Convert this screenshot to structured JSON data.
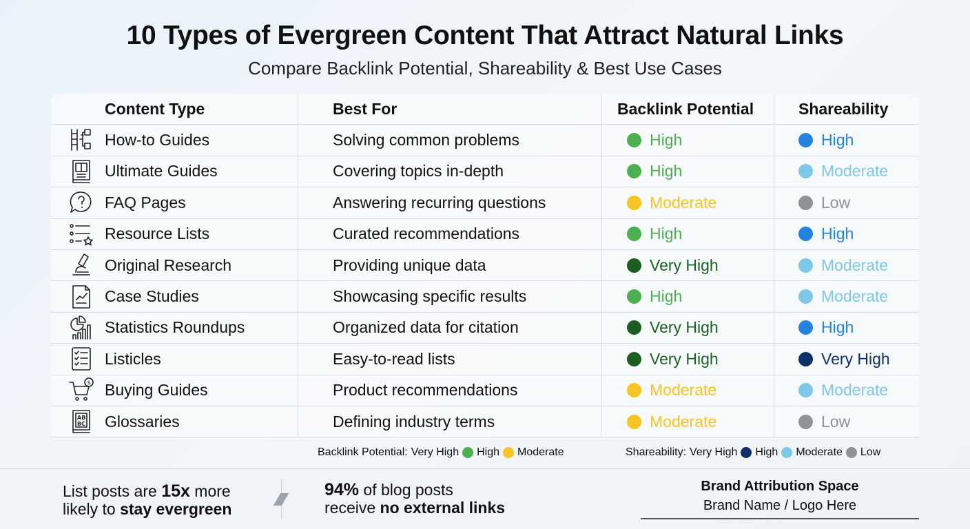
{
  "title": "10 Types of Evergreen Content That Attract Natural Links",
  "subtitle": "Compare Backlink Potential, Shareability & Best Use Cases",
  "colors": {
    "high_green": "#4caf50",
    "very_high_green": "#1b5e20",
    "moderate_yellow": "#f7c325",
    "share_high": "#2583e0",
    "share_moderate": "#7fc7e6",
    "share_low": "#8f9296",
    "share_very_high": "#0f2f68"
  },
  "table": {
    "headers": [
      "Content Type",
      "Best For",
      "Backlink Potential",
      "Shareability"
    ],
    "rows": [
      {
        "icon": "ladder-checklist-icon",
        "type": "How-to Guides",
        "best_for": "Solving common problems",
        "backlink": "High",
        "backlink_color": "#4caf50",
        "share": "High",
        "share_color": "#2583e0"
      },
      {
        "icon": "book-icon",
        "type": "Ultimate Guides",
        "best_for": "Covering topics in-depth",
        "backlink": "High",
        "backlink_color": "#4caf50",
        "share": "Moderate",
        "share_color": "#7fc7e6"
      },
      {
        "icon": "question-bubble-icon",
        "type": "FAQ Pages",
        "best_for": "Answering recurring questions",
        "backlink": "Moderate",
        "backlink_color": "#f7c325",
        "share": "Low",
        "share_color": "#8f9296"
      },
      {
        "icon": "list-star-icon",
        "type": "Resource Lists",
        "best_for": "Curated recommendations",
        "backlink": "High",
        "backlink_color": "#4caf50",
        "share": "High",
        "share_color": "#2583e0"
      },
      {
        "icon": "microscope-icon",
        "type": "Original Research",
        "best_for": "Providing unique data",
        "backlink": "Very High",
        "backlink_color": "#1b5e20",
        "share": "Moderate",
        "share_color": "#7fc7e6"
      },
      {
        "icon": "document-chart-icon",
        "type": "Case Studies",
        "best_for": "Showcasing specific results",
        "backlink": "High",
        "backlink_color": "#4caf50",
        "share": "Moderate",
        "share_color": "#7fc7e6"
      },
      {
        "icon": "pie-bar-chart-icon",
        "type": "Statistics Roundups",
        "best_for": "Organized data for citation",
        "backlink": "Very High",
        "backlink_color": "#1b5e20",
        "share": "High",
        "share_color": "#2583e0"
      },
      {
        "icon": "checklist-icon",
        "type": "Listicles",
        "best_for": "Easy-to-read lists",
        "backlink": "Very High",
        "backlink_color": "#1b5e20",
        "share": "Very High",
        "share_color": "#0f2f68"
      },
      {
        "icon": "shopping-cart-icon",
        "type": "Buying Guides",
        "best_for": "Product recommendations",
        "backlink": "Moderate",
        "backlink_color": "#f7c325",
        "share": "Moderate",
        "share_color": "#7fc7e6"
      },
      {
        "icon": "abc-book-icon",
        "type": "Glossaries",
        "best_for": "Defining industry terms",
        "backlink": "Moderate",
        "backlink_color": "#f7c325",
        "share": "Low",
        "share_color": "#8f9296"
      }
    ]
  },
  "legend": {
    "backlink_label": "Backlink Potential:",
    "backlink_very_high": "Very High",
    "backlink_high": "High",
    "backlink_moderate": "Moderate",
    "share_label": "Shareability:",
    "share_very_high": "Very High",
    "share_high": "High",
    "share_moderate": "Moderate",
    "share_low": "Low"
  },
  "footer": {
    "stat1_a": "List posts are ",
    "stat1_b": "15x",
    "stat1_c": " more",
    "stat1_d": "likely to ",
    "stat1_e": "stay evergreen",
    "stat2_a": "94%",
    "stat2_b": " of blog posts",
    "stat2_c": "receive ",
    "stat2_d": "no external links",
    "brand_title": "Brand Attribution Space",
    "brand_sub": "Brand Name / Logo Here"
  }
}
